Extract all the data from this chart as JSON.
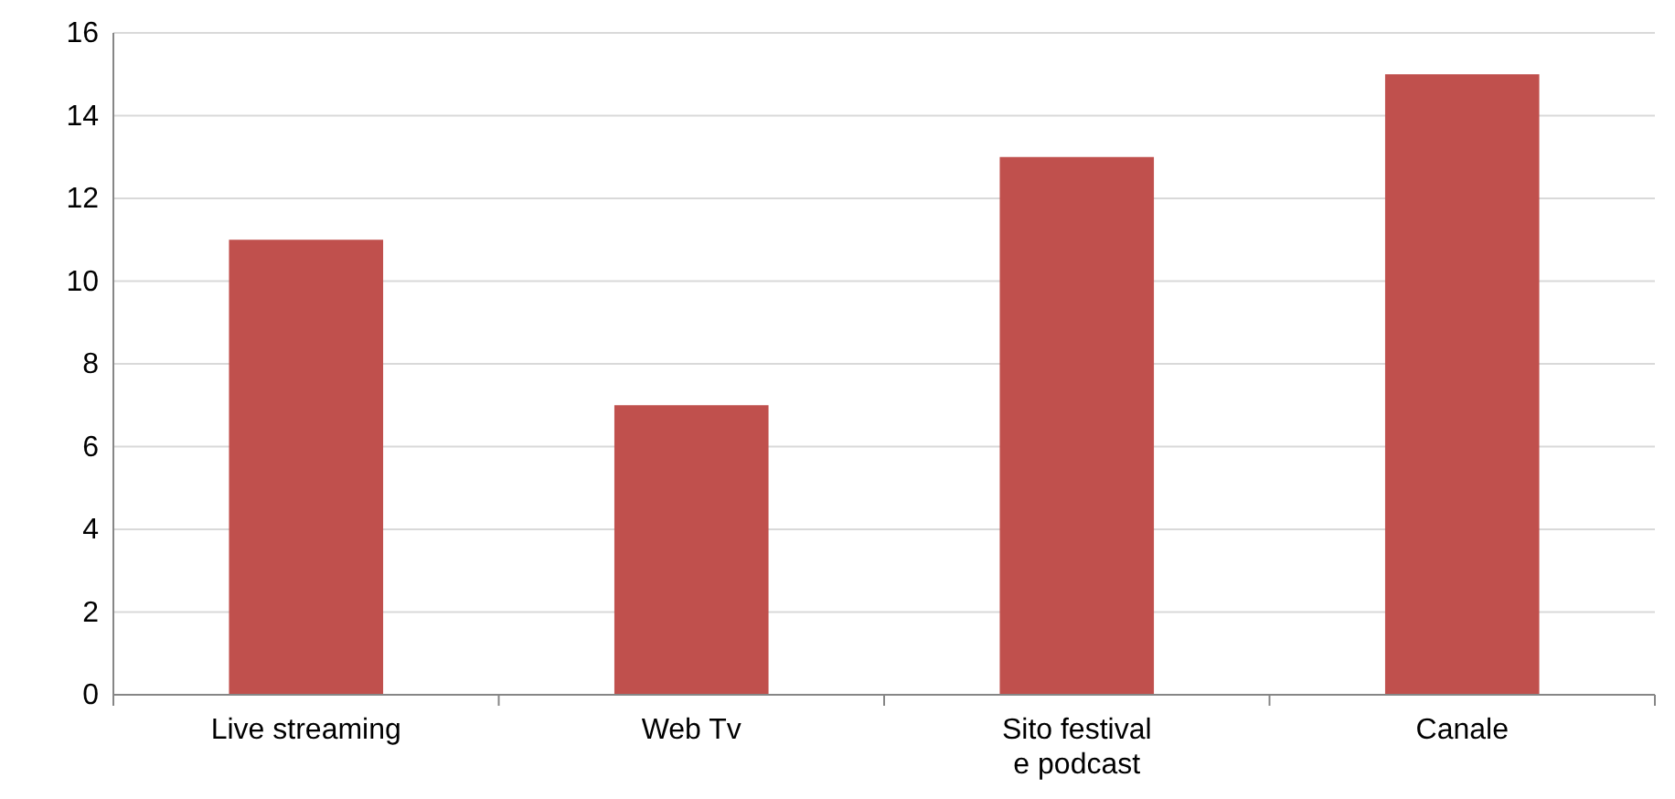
{
  "chart_data": {
    "type": "bar",
    "categories": [
      "Live streaming",
      "Web Tv",
      "Sito festival e podcast",
      "Canale"
    ],
    "values": [
      11,
      7,
      13,
      15
    ],
    "color": "#c0504d",
    "ylim": [
      0,
      16
    ],
    "yticks": [
      0,
      2,
      4,
      6,
      8,
      10,
      12,
      14,
      16
    ],
    "grid": "y"
  }
}
